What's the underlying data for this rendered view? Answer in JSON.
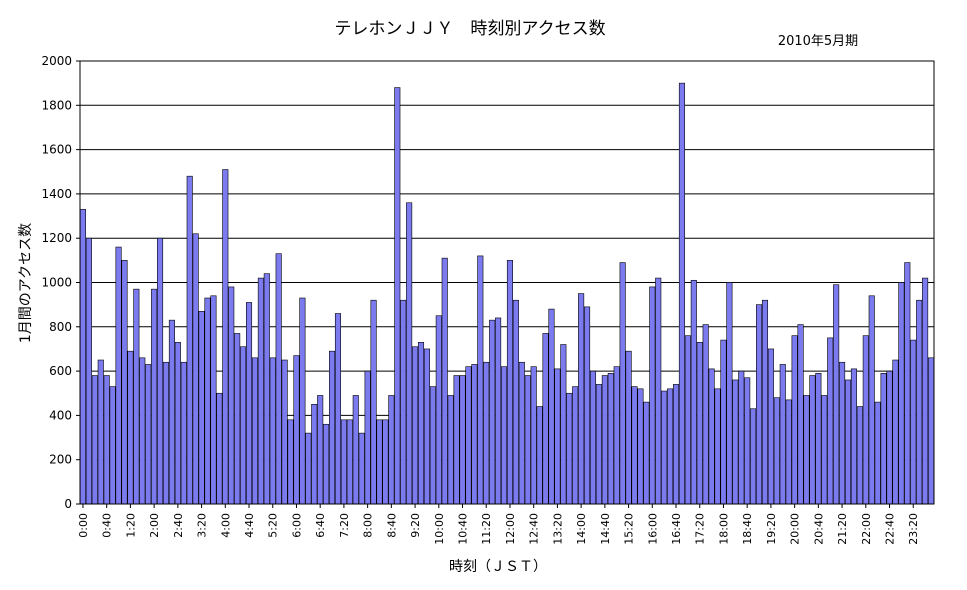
{
  "chart_data": {
    "type": "bar",
    "title": "テレホンＪＪＹ　時刻別アクセス数",
    "subtitle": "2010年5月期",
    "xlabel": "時刻（ＪＳＴ）",
    "ylabel": "1月間のアクセス数",
    "ylim": [
      0,
      2000
    ],
    "yticks": [
      "0",
      "200",
      "400",
      "600",
      "800",
      "1000",
      "1200",
      "1400",
      "1600",
      "1800",
      "2000"
    ],
    "xtick_labels": [
      "0:00",
      "0:40",
      "1:20",
      "2:00",
      "2:40",
      "3:20",
      "4:00",
      "4:40",
      "5:20",
      "6:00",
      "6:40",
      "7:20",
      "8:00",
      "8:40",
      "9:20",
      "10:00",
      "10:40",
      "11:20",
      "12:00",
      "12:40",
      "13:20",
      "14:00",
      "14:40",
      "15:20",
      "16:00",
      "16:40",
      "17:20",
      "18:00",
      "18:40",
      "19:20",
      "20:00",
      "20:40",
      "21:20",
      "22:00",
      "22:40",
      "23:20"
    ],
    "bar_interval_minutes": 10,
    "grid": true,
    "colors": {
      "bar_fill": "#7b7bef",
      "bar_stroke": "#000000",
      "grid": "#000000"
    },
    "values": [
      1330,
      1200,
      580,
      650,
      580,
      530,
      1160,
      1100,
      690,
      970,
      660,
      630,
      970,
      1200,
      640,
      830,
      730,
      640,
      1480,
      1220,
      870,
      930,
      940,
      500,
      1510,
      980,
      770,
      710,
      910,
      660,
      1020,
      1040,
      660,
      1130,
      650,
      380,
      670,
      930,
      320,
      450,
      490,
      360,
      690,
      860,
      380,
      380,
      490,
      320,
      600,
      920,
      380,
      380,
      490,
      1880,
      920,
      1360,
      710,
      730,
      700,
      530,
      850,
      1110,
      490,
      580,
      580,
      620,
      630,
      1120,
      640,
      830,
      840,
      620,
      1100,
      920,
      640,
      580,
      620,
      440,
      770,
      880,
      610,
      720,
      500,
      530,
      950,
      890,
      600,
      540,
      580,
      590,
      620,
      1090,
      690,
      530,
      520,
      460,
      980,
      1020,
      510,
      520,
      540,
      1900,
      760,
      1010,
      730,
      810,
      610,
      520,
      740,
      1000,
      560,
      600,
      570,
      430,
      900,
      920,
      700,
      480,
      630,
      470,
      760,
      810,
      490,
      580,
      590,
      490,
      750,
      990,
      640,
      560,
      610,
      440,
      760,
      940,
      460,
      590,
      600,
      650,
      1000,
      1090,
      740,
      920,
      1020,
      660
    ]
  }
}
